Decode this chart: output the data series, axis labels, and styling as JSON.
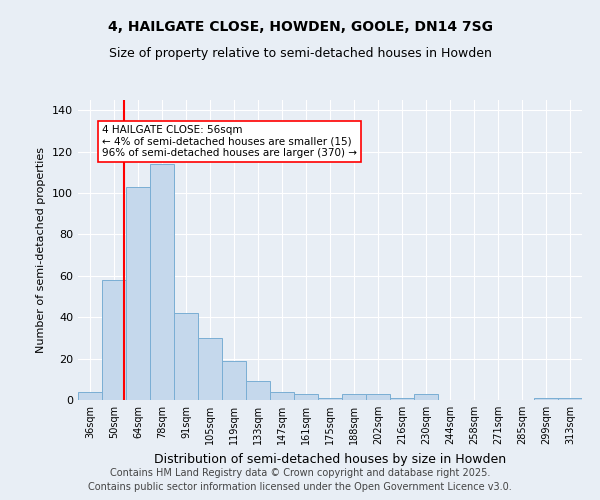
{
  "title1": "4, HAILGATE CLOSE, HOWDEN, GOOLE, DN14 7SG",
  "title2": "Size of property relative to semi-detached houses in Howden",
  "xlabel": "Distribution of semi-detached houses by size in Howden",
  "ylabel": "Number of semi-detached properties",
  "categories": [
    "36sqm",
    "50sqm",
    "64sqm",
    "78sqm",
    "91sqm",
    "105sqm",
    "119sqm",
    "133sqm",
    "147sqm",
    "161sqm",
    "175sqm",
    "188sqm",
    "202sqm",
    "216sqm",
    "230sqm",
    "244sqm",
    "258sqm",
    "271sqm",
    "285sqm",
    "299sqm",
    "313sqm"
  ],
  "values": [
    4,
    58,
    103,
    114,
    42,
    30,
    19,
    9,
    4,
    3,
    1,
    3,
    3,
    1,
    3,
    0,
    0,
    0,
    0,
    1,
    1
  ],
  "bar_color": "#c5d8ec",
  "bar_edge_color": "#7aaed4",
  "annotation_line1": "4 HAILGATE CLOSE: 56sqm",
  "annotation_line2": "← 4% of semi-detached houses are smaller (15)",
  "annotation_line3": "96% of semi-detached houses are larger (370) →",
  "red_line_x": 1.42,
  "ylim": [
    0,
    145
  ],
  "yticks": [
    0,
    20,
    40,
    60,
    80,
    100,
    120,
    140
  ],
  "footer1": "Contains HM Land Registry data © Crown copyright and database right 2025.",
  "footer2": "Contains public sector information licensed under the Open Government Licence v3.0.",
  "background_color": "#e8eef5",
  "grid_color": "#ffffff",
  "title_fontsize": 10,
  "subtitle_fontsize": 9,
  "footer_fontsize": 7
}
